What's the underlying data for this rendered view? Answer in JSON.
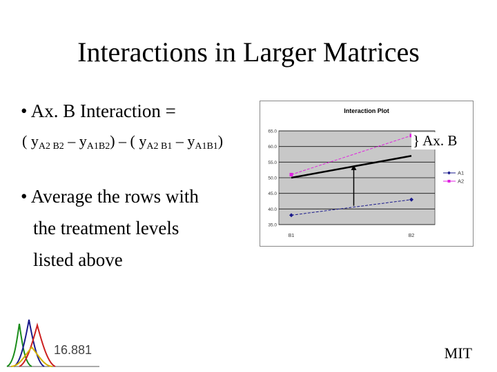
{
  "slide": {
    "title": "Interactions in Larger Matrices",
    "bullet1": "• Ax. B Interaction =",
    "formula": {
      "part1": "( y",
      "sub1": "A2 B2",
      "part2": " – y",
      "sub2": "A1B2",
      "part3": ") – ( y",
      "sub3": "A2 B1",
      "part4": " – y",
      "sub4": "A1B1",
      "part5": ")"
    },
    "bullet2_lines": [
      "• Average the rows with",
      "the treatment levels",
      "listed above"
    ],
    "annotation": "} Ax. B",
    "course": "16.881",
    "org": "MIT"
  },
  "chart_data": {
    "type": "line",
    "title": "Interaction Plot",
    "categories": [
      "B1",
      "B2"
    ],
    "ylim": [
      35,
      65
    ],
    "yticks": [
      "65.0",
      "60.0",
      "55.0",
      "50.0",
      "45.0",
      "40.0",
      "35.0"
    ],
    "grid": true,
    "legend_position": "right",
    "series": [
      {
        "name": "A1",
        "values": [
          38.0,
          43.0
        ],
        "color": "#1a1a8c",
        "marker": "diamond"
      },
      {
        "name": "A2",
        "values": [
          51.0,
          63.5
        ],
        "color": "#e020e0",
        "marker": "square"
      }
    ],
    "average_line": {
      "values": [
        50.0,
        57.0
      ],
      "color": "#000000"
    },
    "arrow": {
      "x_fraction": 0.52,
      "from": 41.0,
      "to": 54.0
    }
  }
}
